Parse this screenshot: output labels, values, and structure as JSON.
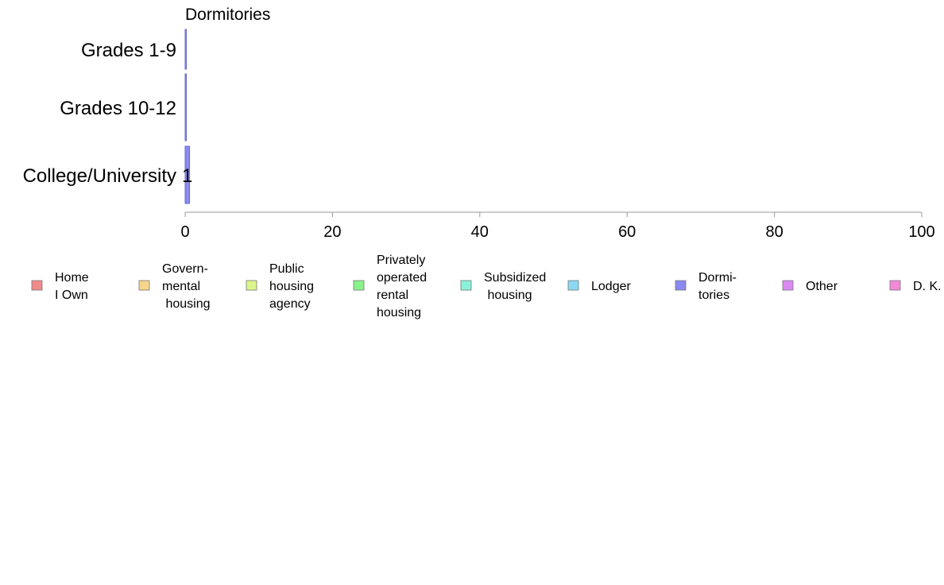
{
  "chart_data": {
    "type": "bar",
    "orientation": "horizontal",
    "title": "Dormitories",
    "categories": [
      "Grades 1-9",
      "Grades 10-12",
      "College/University"
    ],
    "series": [
      {
        "name": "Dormitories",
        "values": [
          0,
          0,
          0.6
        ],
        "color": "#8a8af2",
        "data_labels": [
          "",
          "",
          "1"
        ]
      }
    ],
    "xlim": [
      0,
      100
    ],
    "xticks": [
      0,
      20,
      40,
      60,
      80,
      100
    ],
    "xlabel": "",
    "ylabel": "",
    "grid": false,
    "legend_position": "bottom",
    "legend": [
      {
        "lines": [
          "Home",
          "I Own"
        ],
        "color": "#f28a8a"
      },
      {
        "lines": [
          "Govern-",
          "mental",
          " housing"
        ],
        "color": "#f7d48a"
      },
      {
        "lines": [
          "Public",
          "housing",
          "agency"
        ],
        "color": "#dcf58a"
      },
      {
        "lines": [
          "Privately",
          "operated",
          "rental",
          "housing"
        ],
        "color": "#8af28a"
      },
      {
        "lines": [
          "Subsidized",
          " housing"
        ],
        "color": "#8af2d8"
      },
      {
        "lines": [
          "Lodger"
        ],
        "color": "#8ad8f2"
      },
      {
        "lines": [
          "Dormi-",
          "tories"
        ],
        "color": "#8a8af2"
      },
      {
        "lines": [
          "Other"
        ],
        "color": "#dc8af2"
      },
      {
        "lines": [
          "D. K."
        ],
        "color": "#f28ad8"
      }
    ]
  }
}
